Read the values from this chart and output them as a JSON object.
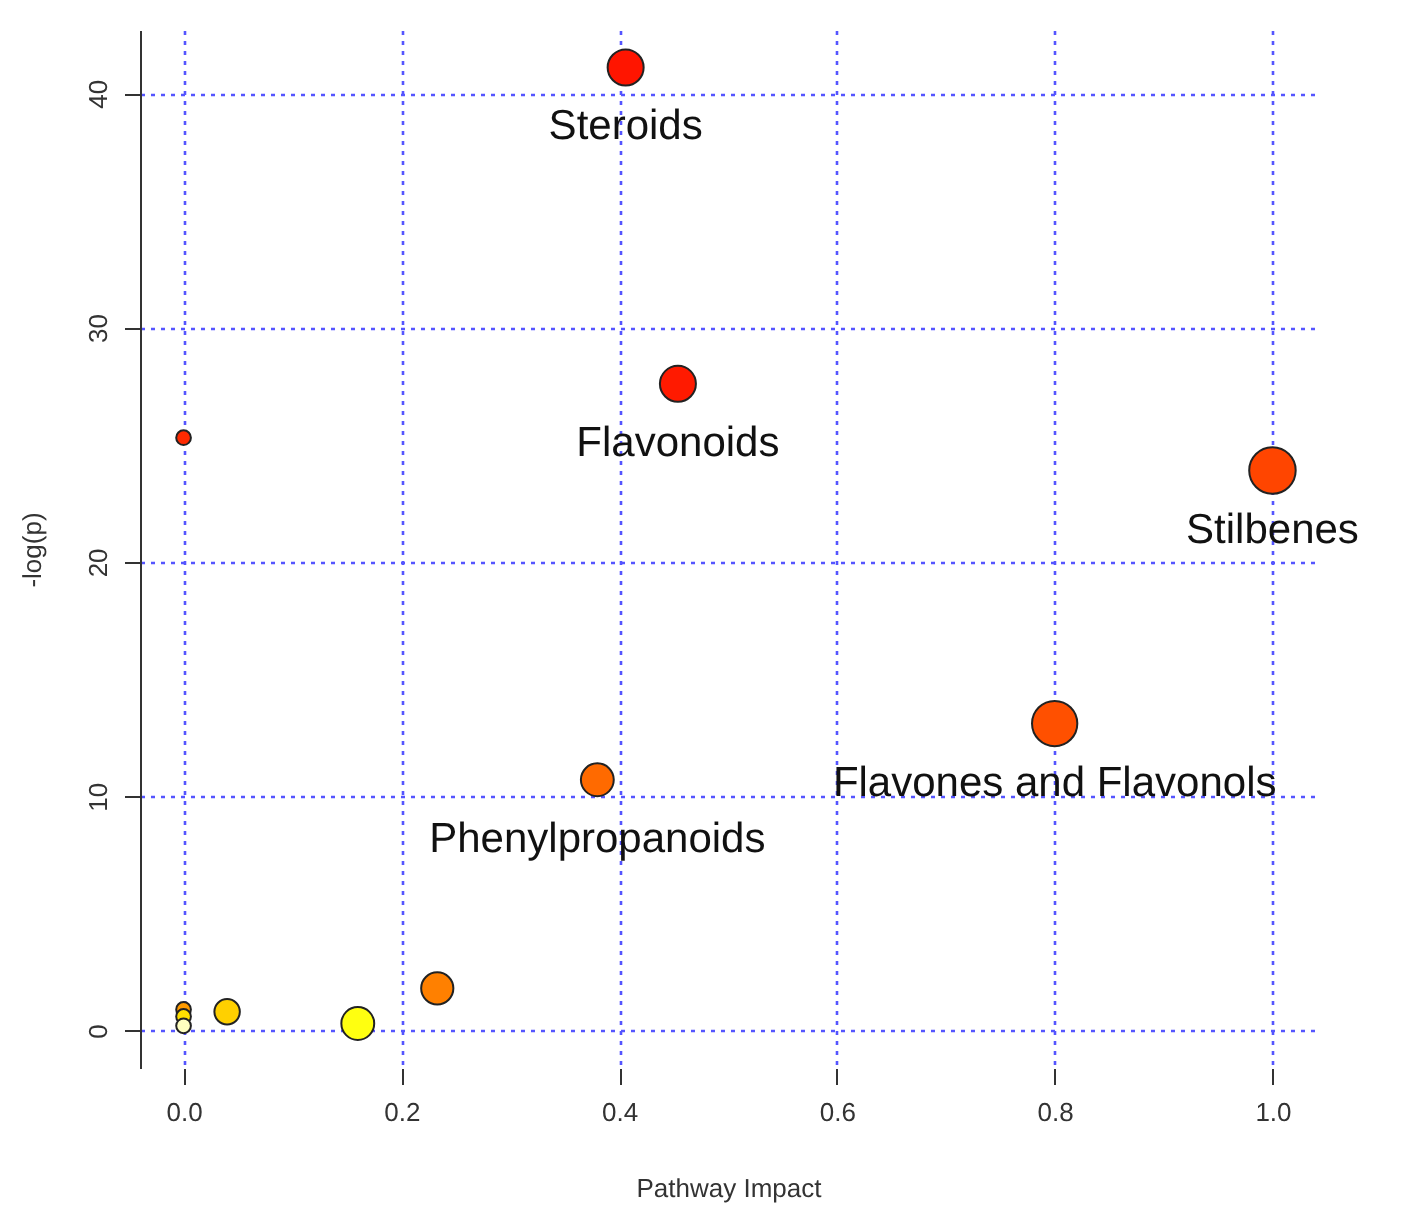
{
  "chart_data": {
    "type": "bubble",
    "xlabel": "Pathway Impact",
    "ylabel": "-log(p)",
    "xlim": [
      -0.04,
      1.04
    ],
    "xticks": [
      {
        "value": 0,
        "label": "0.0"
      },
      {
        "value": 0.2,
        "label": "0.2"
      },
      {
        "value": 0.4,
        "label": "0.4"
      },
      {
        "value": 0.6,
        "label": "0.6"
      },
      {
        "value": 0.8,
        "label": "0.8"
      },
      {
        "value": 1,
        "label": "1.0"
      }
    ],
    "ylim": [
      -1.6,
      42.7
    ],
    "yticks": [
      0,
      10,
      20,
      30,
      40
    ],
    "grid": true,
    "series": [
      {
        "x": [
          0.406,
          0.454,
          0,
          1.0,
          0.8,
          0.38,
          0.233,
          0.16,
          0.04,
          0,
          0,
          0
        ],
        "values": [
          41.1,
          27.6,
          25.3,
          23.9,
          13.1,
          10.7,
          1.8,
          0.3,
          0.8,
          0.9,
          0.6,
          0.2
        ],
        "sizes": [
          0.6,
          0.6,
          0.1,
          1,
          0.95,
          0.5,
          0.48,
          0.5,
          0.3,
          0.1,
          0.1,
          0.1
        ],
        "colors": [
          "#ff1500",
          "#ff1a00",
          "#ff2a00",
          "#ff4500",
          "#ff5000",
          "#ff6a00",
          "#ff8000",
          "#ffff10",
          "#ffd000",
          "#ff9a00",
          "#ffe000",
          "#ffffc0"
        ]
      }
    ],
    "annotations": [
      {
        "text": "Steroids",
        "x": 0.406,
        "y": 41.1
      },
      {
        "text": "Flavonoids",
        "x": 0.454,
        "y": 27.6
      },
      {
        "text": "Stilbenes",
        "x": 1.0,
        "y": 23.9
      },
      {
        "text": "Flavones and Flavonols",
        "x": 0.8,
        "y": 13.1
      },
      {
        "text": "Phenylpropanoids",
        "x": 0.38,
        "y": 10.7
      }
    ]
  }
}
